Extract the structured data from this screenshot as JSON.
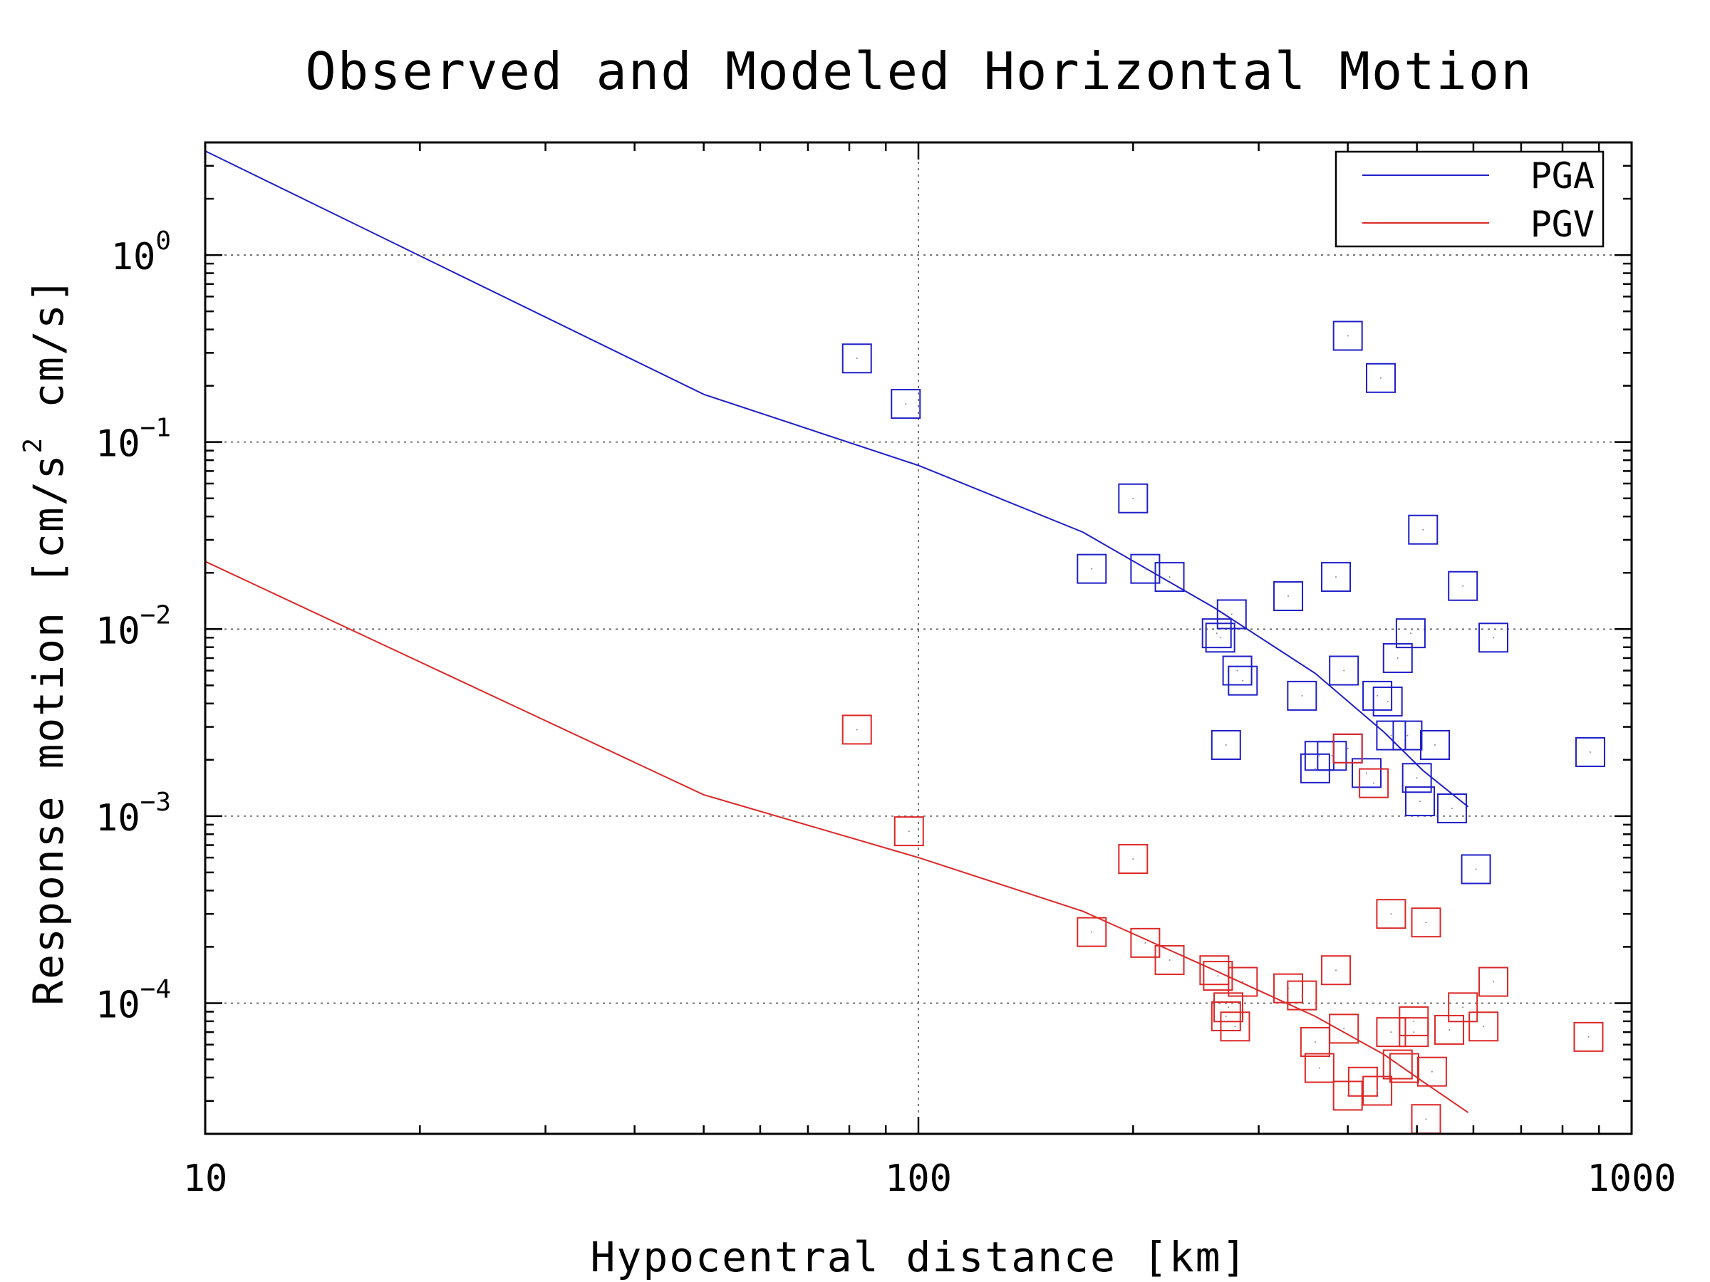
{
  "chart_data": {
    "type": "scatter",
    "title": "Observed and Modeled Horizontal Motion",
    "xlabel": "Hypocentral distance [km]",
    "ylabel_parts": {
      "before": "Response motion [cm/s",
      "sup": "2",
      "after": "cm/s]"
    },
    "x_scale": "log",
    "y_scale": "log",
    "xlim": [
      10,
      1000
    ],
    "ylim": [
      2e-05,
      4
    ],
    "x_ticks": [
      {
        "value": 10,
        "label": "10"
      },
      {
        "value": 100,
        "label": "100"
      },
      {
        "value": 1000,
        "label": "1000"
      }
    ],
    "y_ticks": [
      {
        "value": 1,
        "base": "10",
        "exp": "0"
      },
      {
        "value": 0.1,
        "base": "10",
        "exp": "−1"
      },
      {
        "value": 0.01,
        "base": "10",
        "exp": "−2"
      },
      {
        "value": 0.001,
        "base": "10",
        "exp": "−3"
      },
      {
        "value": 0.0001,
        "base": "10",
        "exp": "−4"
      }
    ],
    "grid": true,
    "legend_position": "top-right",
    "series": [
      {
        "name": "PGA",
        "color": "#1f1fc8",
        "line": [
          [
            10,
            3.6
          ],
          [
            50,
            0.18
          ],
          [
            100,
            0.075
          ],
          [
            170,
            0.033
          ],
          [
            260,
            0.013
          ],
          [
            360,
            0.0058
          ],
          [
            450,
            0.0028
          ],
          [
            510,
            0.00175
          ],
          [
            590,
            0.00112
          ]
        ],
        "points": [
          [
            82,
            0.28
          ],
          [
            96,
            0.16
          ],
          [
            400,
            0.37
          ],
          [
            445,
            0.22
          ],
          [
            200,
            0.05
          ],
          [
            175,
            0.021
          ],
          [
            208,
            0.021
          ],
          [
            225,
            0.019
          ],
          [
            510,
            0.034
          ],
          [
            330,
            0.015
          ],
          [
            385,
            0.019
          ],
          [
            580,
            0.017
          ],
          [
            275,
            0.012
          ],
          [
            262,
            0.0095
          ],
          [
            265,
            0.009
          ],
          [
            490,
            0.0095
          ],
          [
            640,
            0.009
          ],
          [
            470,
            0.007
          ],
          [
            280,
            0.006
          ],
          [
            285,
            0.0053
          ],
          [
            395,
            0.006
          ],
          [
            345,
            0.0044
          ],
          [
            440,
            0.0044
          ],
          [
            455,
            0.0041
          ],
          [
            270,
            0.0024
          ],
          [
            460,
            0.0027
          ],
          [
            485,
            0.0027
          ],
          [
            530,
            0.0024
          ],
          [
            380,
            0.0021
          ],
          [
            365,
            0.0021
          ],
          [
            400,
            0.0023
          ],
          [
            875,
            0.0022
          ],
          [
            360,
            0.0018
          ],
          [
            425,
            0.0017
          ],
          [
            500,
            0.0016
          ],
          [
            505,
            0.0012
          ],
          [
            560,
            0.0011
          ],
          [
            605,
            0.00052
          ]
        ]
      },
      {
        "name": "PGV",
        "color": "#dc2828",
        "line": [
          [
            10,
            0.023
          ],
          [
            50,
            0.0013
          ],
          [
            100,
            0.0006
          ],
          [
            170,
            0.00031
          ],
          [
            260,
            0.00015
          ],
          [
            360,
            8.5e-05
          ],
          [
            450,
            5.3e-05
          ],
          [
            510,
            3.8e-05
          ],
          [
            590,
            2.6e-05
          ]
        ],
        "points": [
          [
            82,
            0.0029
          ],
          [
            97,
            0.00083
          ],
          [
            200,
            0.00059
          ],
          [
            400,
            0.0023
          ],
          [
            435,
            0.0015
          ],
          [
            175,
            0.00024
          ],
          [
            460,
            0.0003
          ],
          [
            515,
            0.00027
          ],
          [
            208,
            0.00021
          ],
          [
            225,
            0.00017
          ],
          [
            260,
            0.00015
          ],
          [
            263,
            0.00014
          ],
          [
            285,
            0.00013
          ],
          [
            330,
            0.00012
          ],
          [
            345,
            0.00011
          ],
          [
            385,
            0.00015
          ],
          [
            640,
            0.00013
          ],
          [
            580,
            9.5e-05
          ],
          [
            272,
            9.5e-05
          ],
          [
            270,
            8.5e-05
          ],
          [
            278,
            7.5e-05
          ],
          [
            395,
            7.3e-05
          ],
          [
            460,
            7e-05
          ],
          [
            495,
            8e-05
          ],
          [
            495,
            7e-05
          ],
          [
            555,
            7.2e-05
          ],
          [
            620,
            7.5e-05
          ],
          [
            870,
            6.6e-05
          ],
          [
            360,
            6.2e-05
          ],
          [
            365,
            4.5e-05
          ],
          [
            420,
            3.8e-05
          ],
          [
            470,
            4.7e-05
          ],
          [
            480,
            4.5e-05
          ],
          [
            525,
            4.3e-05
          ],
          [
            400,
            3.2e-05
          ],
          [
            440,
            3.4e-05
          ],
          [
            515,
            2.4e-05
          ]
        ]
      }
    ]
  }
}
